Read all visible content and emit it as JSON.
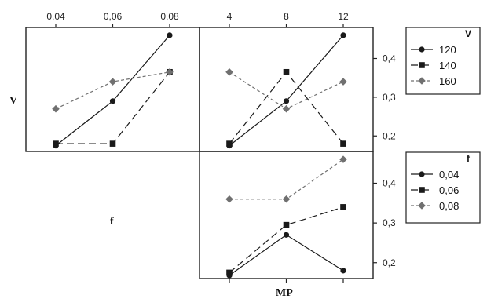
{
  "chart_data": {
    "type": "line",
    "row_labels": [
      "V",
      "f"
    ],
    "xlabel": "MP",
    "y_ticks": [
      "0,2",
      "0,3",
      "0,4"
    ],
    "ylim": [
      0.16,
      0.48
    ],
    "panels": [
      {
        "id": "v-vs-f",
        "x_ticks": [
          "0,04",
          "0,06",
          "0,08"
        ],
        "x": [
          0.04,
          0.06,
          0.08
        ],
        "series": [
          {
            "name": "120",
            "values": [
              0.175,
              0.29,
              0.46
            ]
          },
          {
            "name": "140",
            "values": [
              0.18,
              0.18,
              0.365
            ]
          },
          {
            "name": "160",
            "values": [
              0.27,
              0.34,
              0.365
            ]
          }
        ]
      },
      {
        "id": "v-vs-mp",
        "x_ticks": [
          "4",
          "8",
          "12"
        ],
        "x": [
          4,
          8,
          12
        ],
        "series": [
          {
            "name": "120",
            "values": [
              0.175,
              0.29,
              0.46
            ]
          },
          {
            "name": "140",
            "values": [
              0.18,
              0.365,
              0.18
            ]
          },
          {
            "name": "160",
            "values": [
              0.365,
              0.27,
              0.34
            ]
          }
        ]
      },
      {
        "id": "f-vs-mp",
        "x_ticks": [
          "4",
          "8",
          "12"
        ],
        "x": [
          4,
          8,
          12
        ],
        "series": [
          {
            "name": "0,04",
            "values": [
              0.168,
              0.27,
              0.18
            ]
          },
          {
            "name": "0,06",
            "values": [
              0.175,
              0.295,
              0.34
            ]
          },
          {
            "name": "0,08",
            "values": [
              0.36,
              0.36,
              0.46
            ]
          }
        ]
      }
    ],
    "legends": [
      {
        "title": "V",
        "entries": [
          "120",
          "140",
          "160"
        ]
      },
      {
        "title": "f",
        "entries": [
          "0,04",
          "0,06",
          "0,08"
        ]
      }
    ],
    "series_styles": [
      {
        "marker": "circle",
        "dash": "solid",
        "color": "#1a1a1a"
      },
      {
        "marker": "square",
        "dash": "long-dash",
        "color": "#1a1a1a"
      },
      {
        "marker": "diamond",
        "dash": "short-dash",
        "color": "#707070"
      }
    ],
    "grid": false
  }
}
